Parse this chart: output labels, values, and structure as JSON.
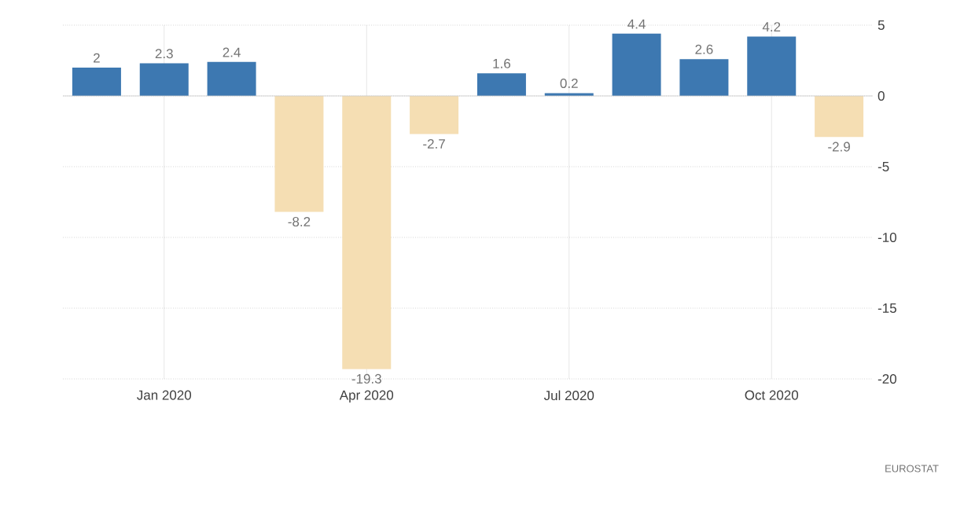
{
  "chart_data": {
    "type": "bar",
    "categories": [
      null,
      "Jan 2020",
      null,
      null,
      "Apr 2020",
      null,
      null,
      "Jul 2020",
      null,
      null,
      "Oct 2020",
      null
    ],
    "values": [
      2,
      2.3,
      2.4,
      -8.2,
      -19.3,
      -2.7,
      1.6,
      0.2,
      4.4,
      2.6,
      4.2,
      -2.9
    ],
    "colors": [
      "#3d78b1",
      "#3d78b1",
      "#3d78b1",
      "#f5deb3",
      "#f5deb3",
      "#f5deb3",
      "#3d78b1",
      "#3d78b1",
      "#3d78b1",
      "#3d78b1",
      "#3d78b1",
      "#f5deb3"
    ],
    "ylim": [
      -20,
      5
    ],
    "yticks": [
      -20,
      -15,
      -10,
      -5,
      0,
      5
    ],
    "grid": true,
    "data_labels": true,
    "annotations": [
      "EUROSTAT"
    ]
  }
}
